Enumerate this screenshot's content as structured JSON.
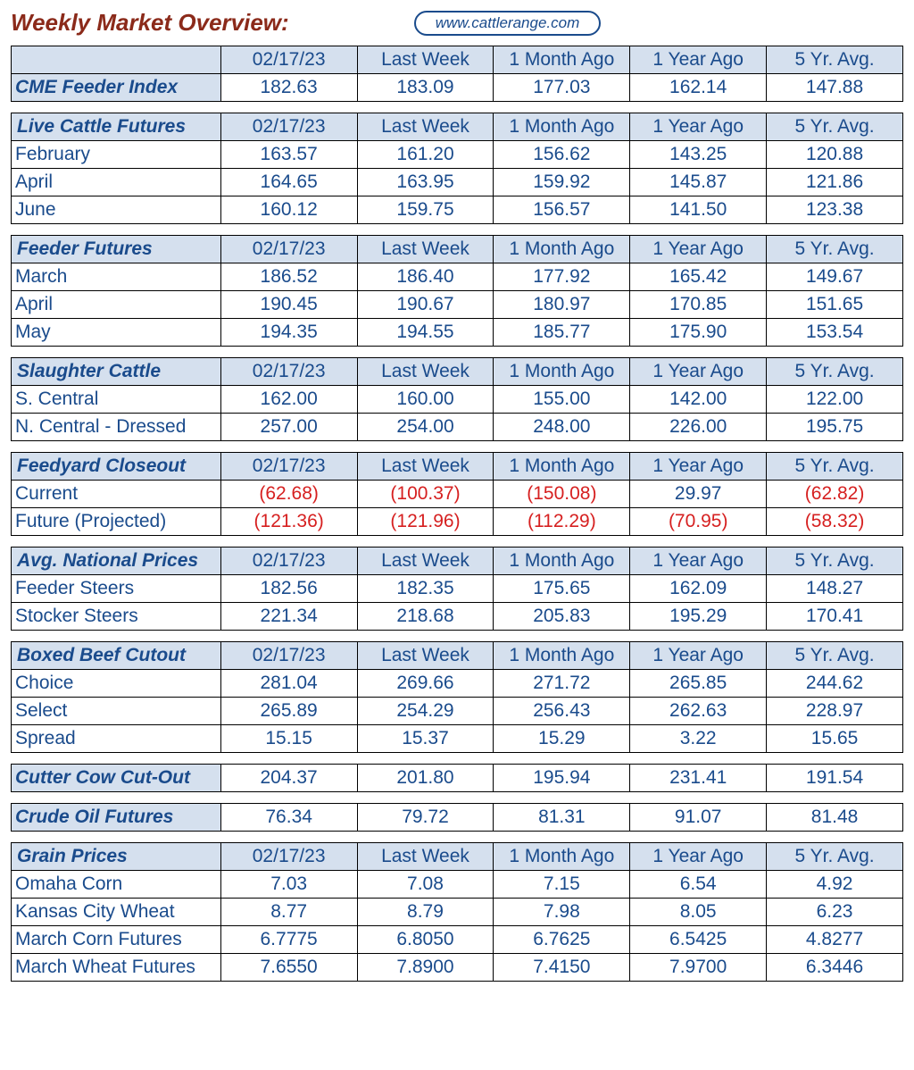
{
  "title": "Weekly Market Overview:",
  "website": "www.cattlerange.com",
  "columns": [
    "02/17/23",
    "Last Week",
    "1 Month Ago",
    "1 Year Ago",
    "5 Yr. Avg."
  ],
  "colors": {
    "title": "#8b2a1a",
    "header_bg": "#d5e0ee",
    "text_blue": "#1a4b8c",
    "text_red": "#d62020",
    "border": "#000000",
    "background": "#ffffff"
  },
  "sections": [
    {
      "label": "",
      "show_header": true,
      "rows": [
        {
          "label": "CME Feeder Index",
          "bold": true,
          "values": [
            "182.63",
            "183.09",
            "177.03",
            "162.14",
            "147.88"
          ],
          "neg": [
            false,
            false,
            false,
            false,
            false
          ]
        }
      ]
    },
    {
      "label": "Live Cattle Futures",
      "show_header": true,
      "rows": [
        {
          "label": "February",
          "values": [
            "163.57",
            "161.20",
            "156.62",
            "143.25",
            "120.88"
          ],
          "neg": [
            false,
            false,
            false,
            false,
            false
          ]
        },
        {
          "label": "April",
          "values": [
            "164.65",
            "163.95",
            "159.92",
            "145.87",
            "121.86"
          ],
          "neg": [
            false,
            false,
            false,
            false,
            false
          ]
        },
        {
          "label": "June",
          "values": [
            "160.12",
            "159.75",
            "156.57",
            "141.50",
            "123.38"
          ],
          "neg": [
            false,
            false,
            false,
            false,
            false
          ]
        }
      ]
    },
    {
      "label": "Feeder Futures",
      "show_header": true,
      "rows": [
        {
          "label": "March",
          "values": [
            "186.52",
            "186.40",
            "177.92",
            "165.42",
            "149.67"
          ],
          "neg": [
            false,
            false,
            false,
            false,
            false
          ]
        },
        {
          "label": "April",
          "values": [
            "190.45",
            "190.67",
            "180.97",
            "170.85",
            "151.65"
          ],
          "neg": [
            false,
            false,
            false,
            false,
            false
          ]
        },
        {
          "label": "May",
          "values": [
            "194.35",
            "194.55",
            "185.77",
            "175.90",
            "153.54"
          ],
          "neg": [
            false,
            false,
            false,
            false,
            false
          ]
        }
      ]
    },
    {
      "label": "Slaughter Cattle",
      "show_header": true,
      "rows": [
        {
          "label": "S. Central",
          "values": [
            "162.00",
            "160.00",
            "155.00",
            "142.00",
            "122.00"
          ],
          "neg": [
            false,
            false,
            false,
            false,
            false
          ]
        },
        {
          "label": "N. Central - Dressed",
          "values": [
            "257.00",
            "254.00",
            "248.00",
            "226.00",
            "195.75"
          ],
          "neg": [
            false,
            false,
            false,
            false,
            false
          ]
        }
      ]
    },
    {
      "label": "Feedyard Closeout",
      "show_header": true,
      "rows": [
        {
          "label": "Current",
          "values": [
            "(62.68)",
            "(100.37)",
            "(150.08)",
            "29.97",
            "(62.82)"
          ],
          "neg": [
            true,
            true,
            true,
            false,
            true
          ]
        },
        {
          "label": "Future (Projected)",
          "values": [
            "(121.36)",
            "(121.96)",
            "(112.29)",
            "(70.95)",
            "(58.32)"
          ],
          "neg": [
            true,
            true,
            true,
            true,
            true
          ]
        }
      ]
    },
    {
      "label": "Avg. National Prices",
      "show_header": true,
      "rows": [
        {
          "label": "Feeder Steers",
          "values": [
            "182.56",
            "182.35",
            "175.65",
            "162.09",
            "148.27"
          ],
          "neg": [
            false,
            false,
            false,
            false,
            false
          ]
        },
        {
          "label": "Stocker Steers",
          "values": [
            "221.34",
            "218.68",
            "205.83",
            "195.29",
            "170.41"
          ],
          "neg": [
            false,
            false,
            false,
            false,
            false
          ]
        }
      ]
    },
    {
      "label": "Boxed Beef Cutout",
      "show_header": true,
      "rows": [
        {
          "label": "Choice",
          "values": [
            "281.04",
            "269.66",
            "271.72",
            "265.85",
            "244.62"
          ],
          "neg": [
            false,
            false,
            false,
            false,
            false
          ]
        },
        {
          "label": "Select",
          "values": [
            "265.89",
            "254.29",
            "256.43",
            "262.63",
            "228.97"
          ],
          "neg": [
            false,
            false,
            false,
            false,
            false
          ]
        },
        {
          "label": "Spread",
          "indent": true,
          "values": [
            "15.15",
            "15.37",
            "15.29",
            "3.22",
            "15.65"
          ],
          "neg": [
            false,
            false,
            false,
            false,
            false
          ]
        }
      ]
    },
    {
      "label": "",
      "show_header": false,
      "rows": [
        {
          "label": "Cutter Cow Cut-Out",
          "bold": true,
          "values": [
            "204.37",
            "201.80",
            "195.94",
            "231.41",
            "191.54"
          ],
          "neg": [
            false,
            false,
            false,
            false,
            false
          ]
        }
      ]
    },
    {
      "label": "",
      "show_header": false,
      "rows": [
        {
          "label": "Crude Oil Futures",
          "bold": true,
          "values": [
            "76.34",
            "79.72",
            "81.31",
            "91.07",
            "81.48"
          ],
          "neg": [
            false,
            false,
            false,
            false,
            false
          ]
        }
      ]
    },
    {
      "label": "Grain Prices",
      "show_header": true,
      "rows": [
        {
          "label": "Omaha Corn",
          "values": [
            "7.03",
            "7.08",
            "7.15",
            "6.54",
            "4.92"
          ],
          "neg": [
            false,
            false,
            false,
            false,
            false
          ]
        },
        {
          "label": "Kansas City Wheat",
          "values": [
            "8.77",
            "8.79",
            "7.98",
            "8.05",
            "6.23"
          ],
          "neg": [
            false,
            false,
            false,
            false,
            false
          ]
        },
        {
          "label": "March Corn Futures",
          "values": [
            "6.7775",
            "6.8050",
            "6.7625",
            "6.5425",
            "4.8277"
          ],
          "neg": [
            false,
            false,
            false,
            false,
            false
          ]
        },
        {
          "label": "March Wheat Futures",
          "values": [
            "7.6550",
            "7.8900",
            "7.4150",
            "7.9700",
            "6.3446"
          ],
          "neg": [
            false,
            false,
            false,
            false,
            false
          ]
        }
      ]
    }
  ]
}
